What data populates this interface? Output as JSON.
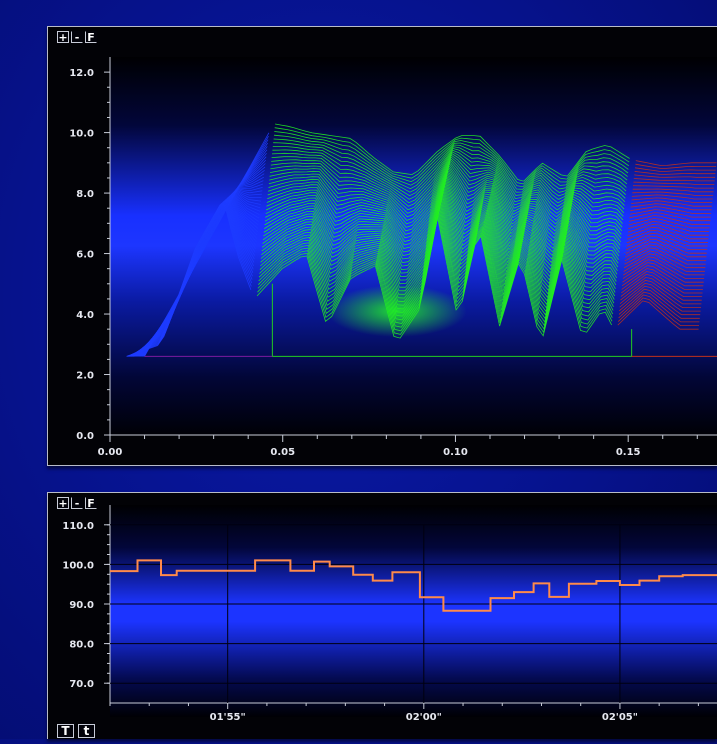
{
  "top_panel": {
    "buttons": {
      "zoom_in": "+",
      "zoom_out": "-",
      "fit": "F"
    }
  },
  "bottom_panel": {
    "buttons": {
      "zoom_in": "+",
      "zoom_out": "-",
      "fit": "F",
      "time_T": "T",
      "time_t": "t"
    }
  },
  "chart_data": [
    {
      "type": "area",
      "view": "waterfall-3d",
      "yticks": [
        "0.0",
        "2.0",
        "4.0",
        "6.0",
        "8.0",
        "10.0",
        "12.0"
      ],
      "xticks": [
        "0.00",
        "0.05",
        "0.10",
        "0.15"
      ],
      "ylim": [
        0,
        12.5
      ],
      "xlim": [
        0,
        0.176
      ],
      "grid": false,
      "selection_window_x": [
        0.047,
        0.151
      ],
      "series_colors": {
        "before_selection": "#1e3cff",
        "selection": "#22ee22",
        "after_selection": "#c0301c"
      },
      "front_profile": {
        "x": [
          0.01,
          0.02,
          0.03,
          0.038,
          0.042,
          0.047,
          0.055,
          0.062,
          0.068,
          0.075,
          0.082,
          0.088,
          0.095,
          0.1,
          0.106,
          0.112,
          0.118,
          0.124,
          0.13,
          0.136,
          0.142,
          0.148,
          0.151,
          0.16,
          0.17,
          0.176
        ],
        "y": [
          2.6,
          3.0,
          6.2,
          7.8,
          6.0,
          4.5,
          5.5,
          6.0,
          3.6,
          5.2,
          5.6,
          3.0,
          4.2,
          7.2,
          3.8,
          6.9,
          3.6,
          5.9,
          3.0,
          5.8,
          3.2,
          4.2,
          3.5,
          4.5,
          3.5,
          3.5
        ]
      },
      "back_profile": {
        "x": [
          0.047,
          0.052,
          0.058,
          0.064,
          0.07,
          0.076,
          0.082,
          0.088,
          0.095,
          0.101,
          0.107,
          0.113,
          0.119,
          0.125,
          0.132,
          0.138,
          0.144,
          0.151,
          0.16,
          0.168,
          0.176
        ],
        "y": [
          10.3,
          10.2,
          10.0,
          9.9,
          9.8,
          9.2,
          8.7,
          8.6,
          9.4,
          9.9,
          9.9,
          9.2,
          8.3,
          9.0,
          8.5,
          9.4,
          9.6,
          9.1,
          8.9,
          9.0,
          9.0
        ]
      }
    },
    {
      "type": "line",
      "step": true,
      "yticks": [
        "70.0",
        "80.0",
        "90.0",
        "100.0",
        "110.0"
      ],
      "xticks": [
        "01'55\"",
        "02'00\"",
        "02'05\""
      ],
      "ylim": [
        65,
        115
      ],
      "xlim_seconds": [
        112.0,
        127.5
      ],
      "grid": true,
      "line_color": "#ff8a4a",
      "series": [
        {
          "x": [
            112.0,
            112.7,
            113.3,
            113.7,
            114.7,
            115.7,
            116.6,
            117.2,
            117.6,
            118.2,
            118.7,
            119.2,
            119.9,
            120.5,
            121.7,
            122.3,
            122.8,
            123.2,
            123.7,
            124.4,
            125.0,
            125.5,
            126.0,
            126.6,
            127.5
          ],
          "y": [
            98.3,
            101.0,
            97.3,
            98.4,
            98.4,
            101.0,
            98.4,
            100.7,
            99.5,
            97.4,
            95.9,
            98.0,
            91.7,
            88.3,
            91.5,
            93.0,
            95.2,
            91.8,
            95.1,
            95.8,
            94.8,
            95.9,
            97.0,
            97.3,
            97.3
          ]
        }
      ]
    }
  ]
}
